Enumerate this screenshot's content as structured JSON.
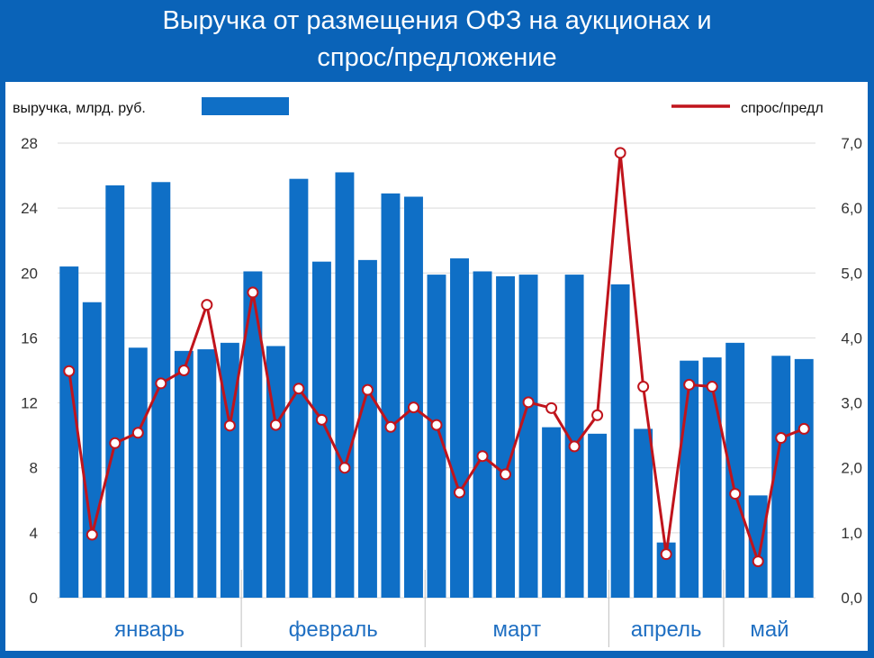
{
  "title_line1": "Выручка от размещения ОФЗ на аукционах и",
  "title_line2": "спрос/предложение",
  "colors": {
    "frame": "#0a63b8",
    "bar": "#0f6fc6",
    "line": "#c0141c",
    "marker_fill": "#ffffff",
    "month_label": "#1f6fc2",
    "axis_text": "#333333"
  },
  "chart_data": {
    "type": "bar",
    "legend": {
      "bar_label": "выручка, млрд. руб.",
      "line_label": "спрос/предл",
      "placement": "top"
    },
    "y_left": {
      "ticks": [
        "0",
        "4",
        "8",
        "12",
        "16",
        "20",
        "24",
        "28"
      ],
      "ylim": [
        0,
        28
      ]
    },
    "y_right": {
      "ticks": [
        "0,0",
        "1,0",
        "2,0",
        "3,0",
        "4,0",
        "5,0",
        "6,0",
        "7,0"
      ],
      "ylim": [
        0,
        7
      ]
    },
    "grid": true,
    "months": [
      {
        "label": "январь",
        "count": 8
      },
      {
        "label": "февраль",
        "count": 8
      },
      {
        "label": "март",
        "count": 8
      },
      {
        "label": "апрель",
        "count": 5
      },
      {
        "label": "май",
        "count": 4
      }
    ],
    "series": [
      {
        "name": "выручка, млрд. руб.",
        "type": "bar",
        "axis": "left",
        "values": [
          20.4,
          18.2,
          25.4,
          15.4,
          25.6,
          15.2,
          15.3,
          15.7,
          20.1,
          15.5,
          25.8,
          20.7,
          26.2,
          20.8,
          24.9,
          24.7,
          19.9,
          20.9,
          20.1,
          19.8,
          19.9,
          10.5,
          19.9,
          10.1,
          19.3,
          10.4,
          3.4,
          14.6,
          14.8,
          15.7,
          6.3,
          14.9,
          14.7
        ]
      },
      {
        "name": "спрос/предл",
        "type": "line",
        "axis": "right",
        "values": [
          3.49,
          0.97,
          2.38,
          2.54,
          3.3,
          3.5,
          4.51,
          2.65,
          4.7,
          2.66,
          3.22,
          2.74,
          2.0,
          3.2,
          2.63,
          2.93,
          2.66,
          1.62,
          2.18,
          1.9,
          3.01,
          2.92,
          2.33,
          2.81,
          6.85,
          3.25,
          0.67,
          3.28,
          3.25,
          1.6,
          0.56,
          2.46,
          2.6
        ]
      }
    ]
  }
}
